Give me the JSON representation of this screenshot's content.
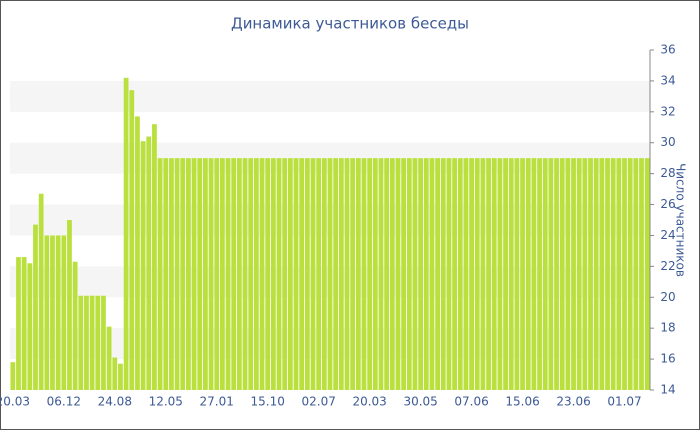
{
  "chart_data": {
    "type": "bar",
    "title": "Динамика участников беседы",
    "y_label": "Число участников",
    "categories": [
      "20.03",
      null,
      null,
      null,
      null,
      null,
      null,
      null,
      null,
      "06.12",
      null,
      null,
      null,
      null,
      null,
      null,
      null,
      null,
      "24.08",
      null,
      null,
      null,
      null,
      null,
      null,
      null,
      null,
      "12.05",
      null,
      null,
      null,
      null,
      null,
      null,
      null,
      null,
      "27.01",
      null,
      null,
      null,
      null,
      null,
      null,
      null,
      null,
      "15.10",
      null,
      null,
      null,
      null,
      null,
      null,
      null,
      null,
      "02.07",
      null,
      null,
      null,
      null,
      null,
      null,
      null,
      null,
      "20.03",
      null,
      null,
      null,
      null,
      null,
      null,
      null,
      null,
      "30.05",
      null,
      null,
      null,
      null,
      null,
      null,
      null,
      null,
      "07.06",
      null,
      null,
      null,
      null,
      null,
      null,
      null,
      null,
      "15.06",
      null,
      null,
      null,
      null,
      null,
      null,
      null,
      null,
      "23.06",
      null,
      null,
      null,
      null,
      null,
      null,
      null,
      null,
      "01.07",
      null,
      null,
      null,
      null
    ],
    "values": [
      15.8,
      22.6,
      22.6,
      22.2,
      24.7,
      26.7,
      24,
      24,
      24,
      24,
      25,
      22.3,
      20.1,
      20.1,
      20.1,
      20.1,
      20.1,
      18.1,
      16.1,
      15.7,
      34.2,
      33.4,
      31.7,
      30.1,
      30.4,
      31.2,
      29,
      29,
      29,
      29,
      29,
      29,
      29,
      29,
      29,
      29,
      29,
      29,
      29,
      29,
      29,
      29,
      29,
      29,
      29,
      29,
      29,
      29,
      29,
      29,
      29,
      29,
      29,
      29,
      29,
      29,
      29,
      29,
      29,
      29,
      29,
      29,
      29,
      29,
      29,
      29,
      29,
      29,
      29,
      29,
      29,
      29,
      29,
      29,
      29,
      29,
      29,
      29,
      29,
      29,
      29,
      29,
      29,
      29,
      29,
      29,
      29,
      29,
      29,
      29,
      29,
      29,
      29,
      29,
      29,
      29,
      29,
      29,
      29,
      29,
      29,
      29,
      29,
      29,
      29,
      29,
      29,
      29,
      29,
      29,
      29,
      29,
      29
    ],
    "color": "#b9e03c",
    "ylim": [
      14,
      36
    ],
    "yticks": [
      14,
      16,
      18,
      20,
      22,
      24,
      26,
      28,
      30,
      32,
      34,
      36
    ],
    "grid": "bands"
  }
}
